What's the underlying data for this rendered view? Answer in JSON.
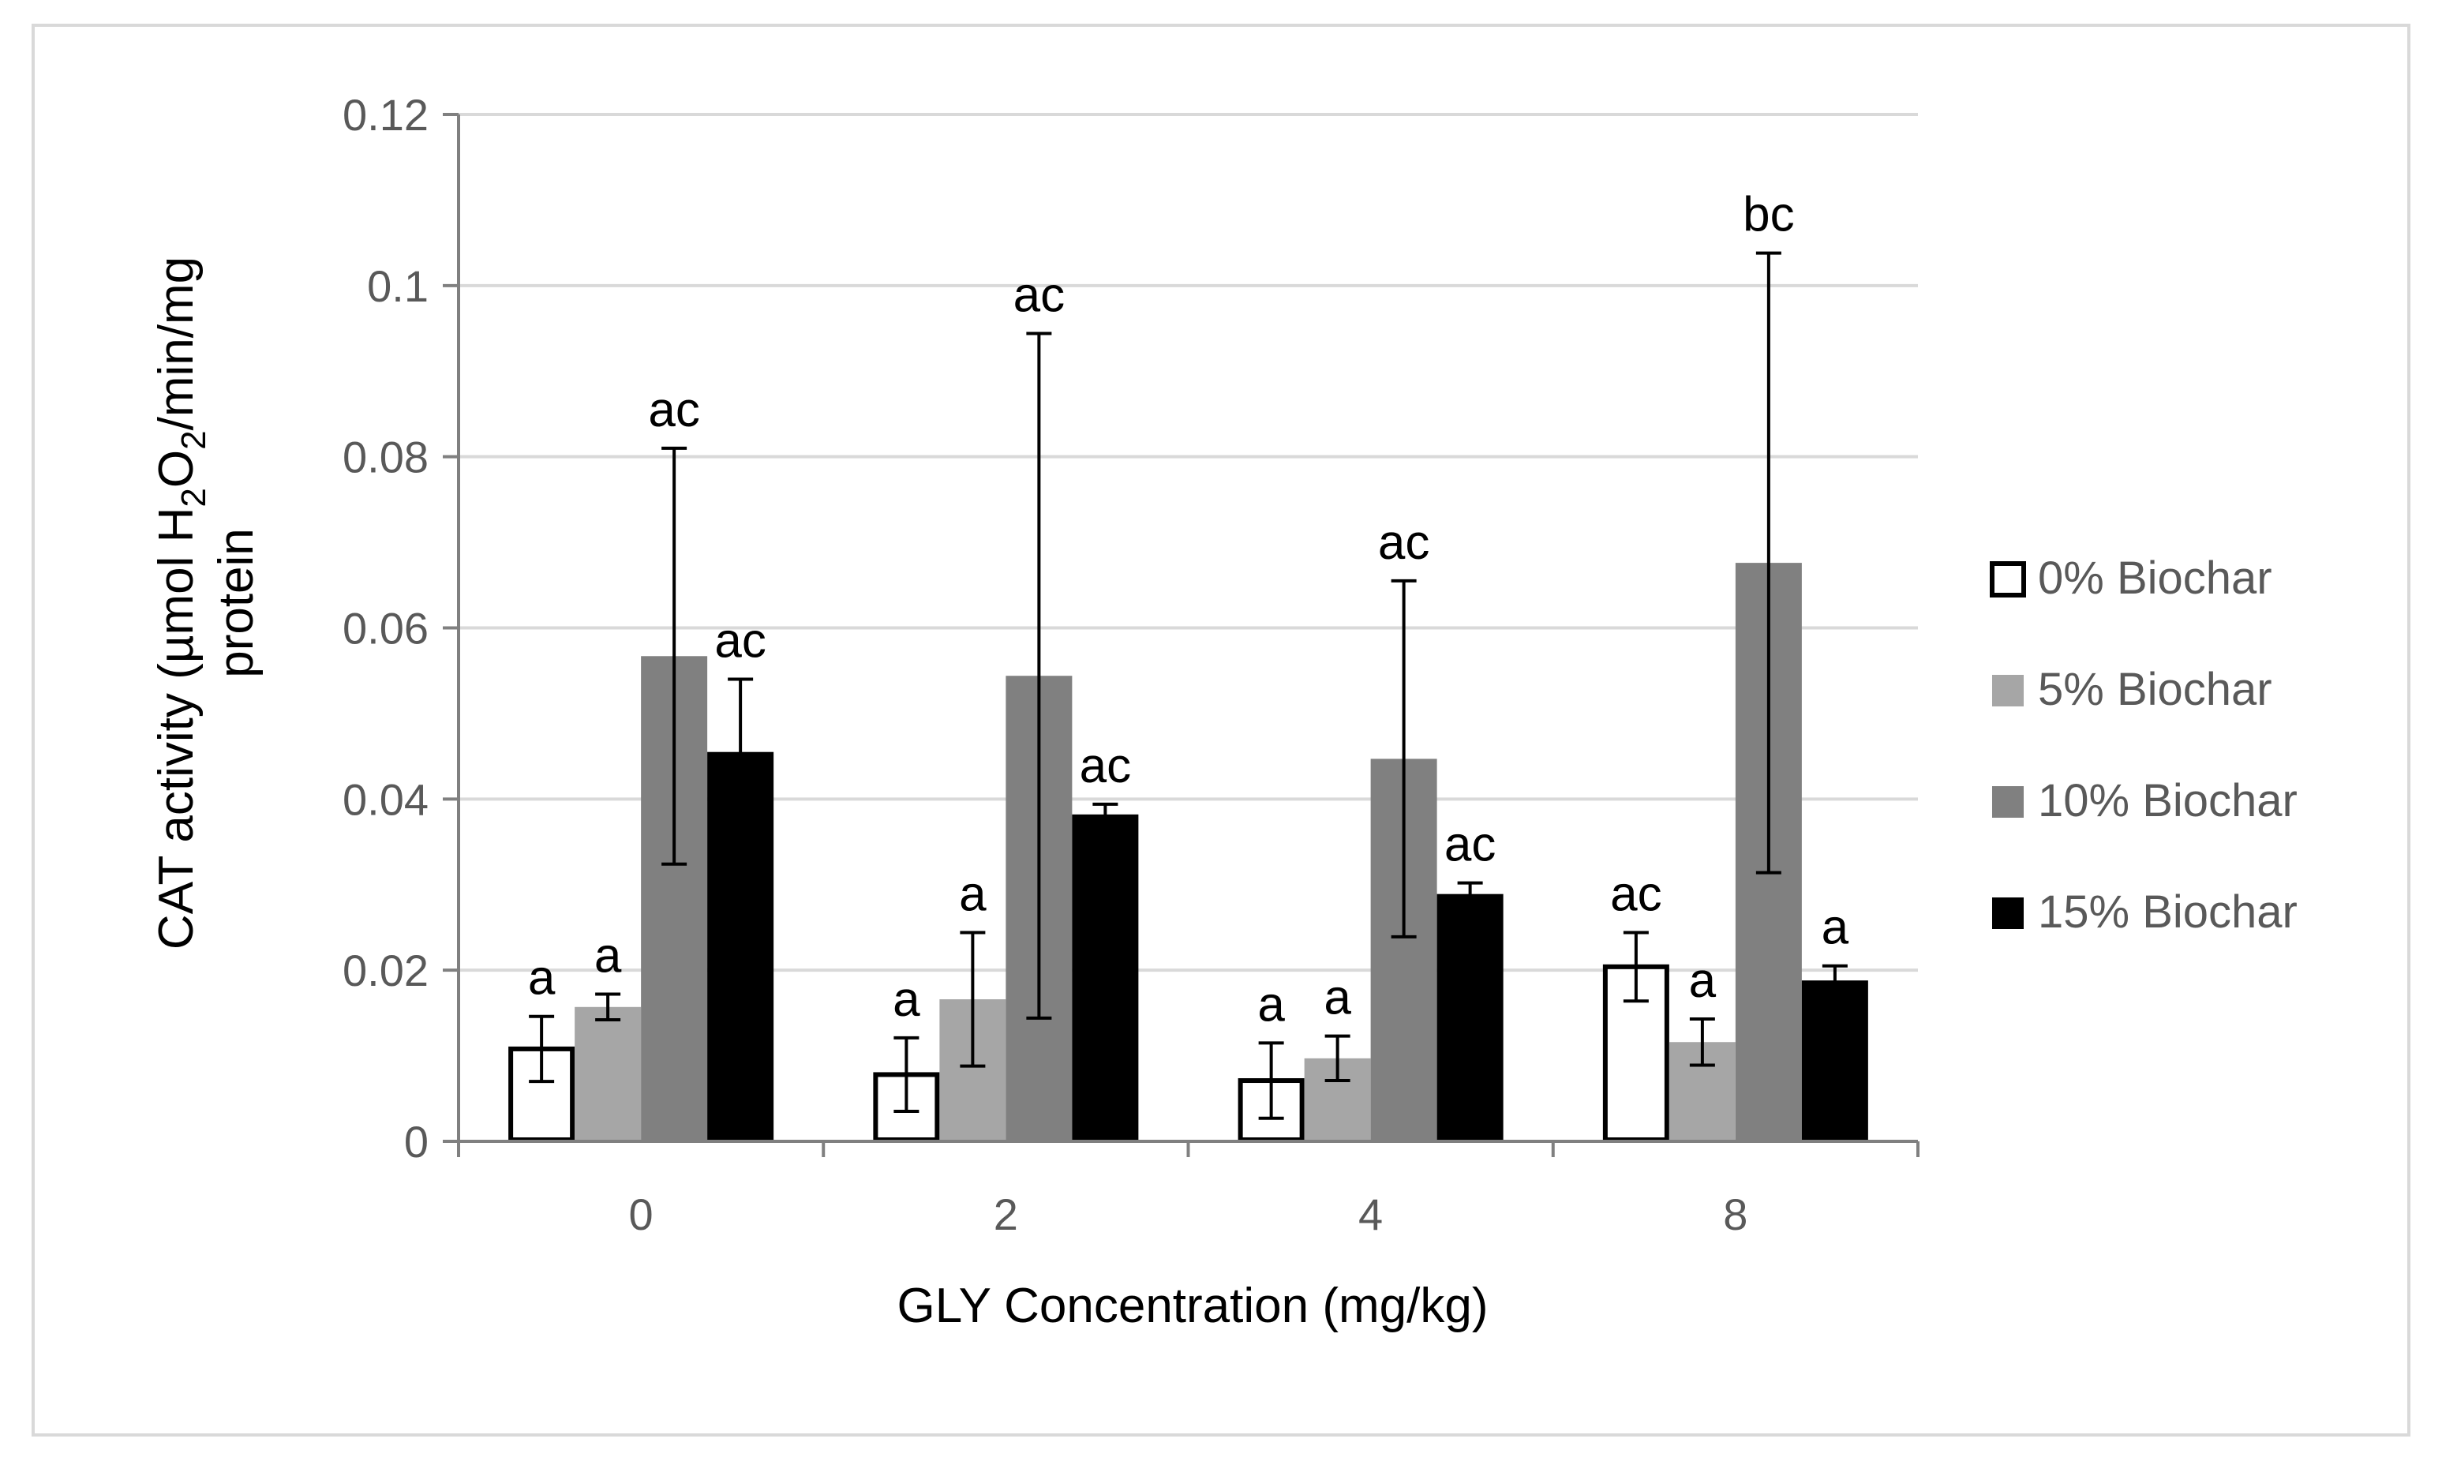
{
  "chart_data": {
    "type": "bar",
    "title": "",
    "xlabel": "GLY Concentration (mg/kg)",
    "ylabel": {
      "line1_prefix": "CAT activity (µmol H",
      "sub1": "2",
      "mid": "O",
      "sub2": "2",
      "line1_suffix": "/min/mg",
      "line2": "protein"
    },
    "ylim": [
      0,
      0.12
    ],
    "yticks": [
      "0",
      "0.02",
      "0.04",
      "0.06",
      "0.08",
      "0.1",
      "0.12"
    ],
    "ytick_values": [
      0,
      0.02,
      0.04,
      0.06,
      0.08,
      0.1,
      0.12
    ],
    "grid": true,
    "legend_position": "right",
    "categories": [
      "0",
      "2",
      "4",
      "8"
    ],
    "series": [
      {
        "name": "0% Biochar",
        "fill": "#ffffff",
        "stroke": "#000000",
        "values": [
          0.0108,
          0.0078,
          0.0071,
          0.0204
        ],
        "errors": [
          0.0038,
          0.0043,
          0.0044,
          0.004
        ],
        "labels": [
          "a",
          "a",
          "a",
          "ac"
        ]
      },
      {
        "name": "5% Biochar",
        "fill": "#a6a6a6",
        "stroke": "#a6a6a6",
        "values": [
          0.0157,
          0.0166,
          0.0097,
          0.0116
        ],
        "errors": [
          0.0015,
          0.0078,
          0.0026,
          0.0027
        ],
        "labels": [
          "a",
          "a",
          "a",
          "a"
        ]
      },
      {
        "name": "10% Biochar",
        "fill": "#808080",
        "stroke": "#808080",
        "values": [
          0.0567,
          0.0544,
          0.0447,
          0.0676
        ],
        "errors": [
          0.0243,
          0.04,
          0.0208,
          0.0362
        ],
        "labels": [
          "ac",
          "ac",
          "ac",
          "bc"
        ]
      },
      {
        "name": "15% Biochar",
        "fill": "#000000",
        "stroke": "#000000",
        "values": [
          0.0455,
          0.0382,
          0.0289,
          0.0188
        ],
        "errors": [
          0.0085,
          0.0012,
          0.0013,
          0.0017
        ],
        "labels": [
          "ac",
          "ac",
          "ac",
          "a"
        ]
      }
    ]
  }
}
